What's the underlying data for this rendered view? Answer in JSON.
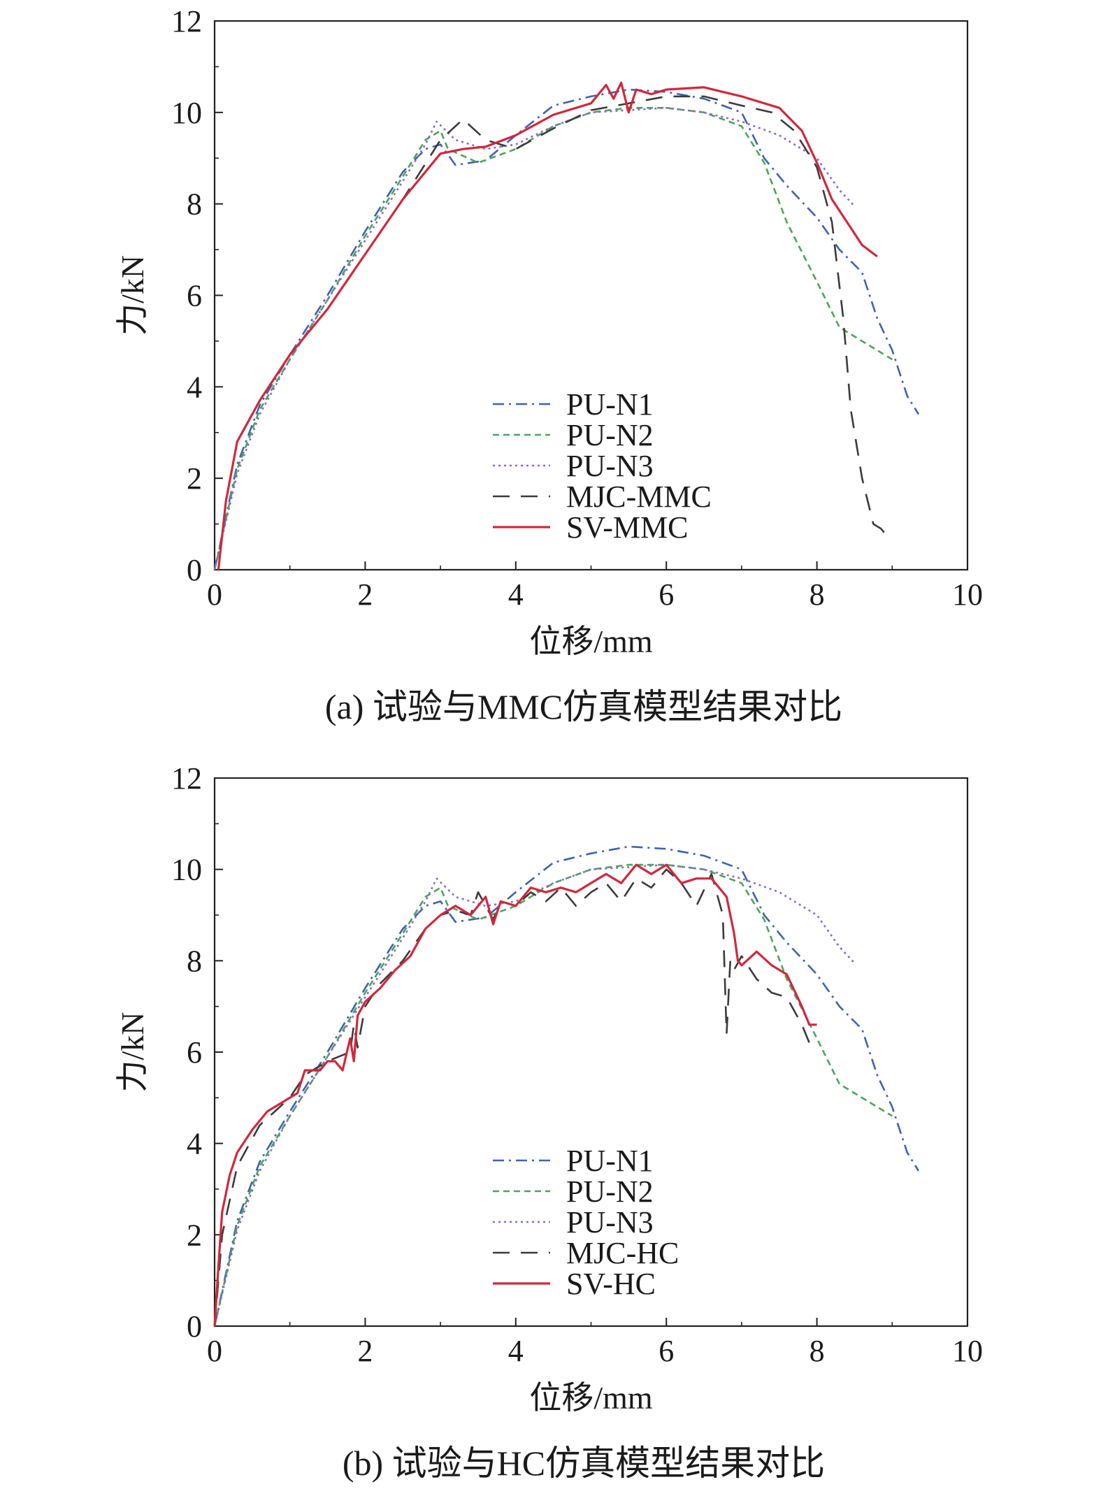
{
  "chart_data": [
    {
      "type": "line",
      "caption": "(a) 试验与MMC仿真模型结果对比",
      "xlabel": "位移/mm",
      "ylabel": "力/kN",
      "xlim": [
        0,
        10
      ],
      "ylim": [
        0,
        12
      ],
      "xticks": [
        "0",
        "2",
        "4",
        "6",
        "8",
        "10"
      ],
      "yticks": [
        "0",
        "2",
        "4",
        "6",
        "8",
        "10",
        "12"
      ],
      "grid": false,
      "legend_position": "lower-center",
      "series": [
        {
          "name": "PU-N1",
          "color": "#3d63b0",
          "dash": "dashdot",
          "x": [
            0,
            0.3,
            0.6,
            1.0,
            1.5,
            2.0,
            2.5,
            2.8,
            3.0,
            3.2,
            3.6,
            4.0,
            4.5,
            5.0,
            5.5,
            6.0,
            6.5,
            7.0,
            7.3,
            7.6,
            8.0,
            8.3,
            8.6,
            8.8,
            9.0,
            9.2,
            9.35
          ],
          "y": [
            0,
            2.3,
            3.6,
            4.7,
            6.0,
            7.4,
            8.7,
            9.2,
            9.3,
            8.85,
            8.95,
            9.5,
            10.15,
            10.35,
            10.5,
            10.45,
            10.3,
            10.0,
            9.0,
            8.4,
            7.7,
            7.0,
            6.5,
            5.5,
            4.8,
            3.8,
            3.4
          ]
        },
        {
          "name": "PU-N2",
          "color": "#4aa55a",
          "dash": "dashed",
          "x": [
            0,
            0.3,
            0.6,
            1.0,
            1.5,
            2.0,
            2.5,
            2.8,
            3.0,
            3.1,
            3.5,
            4.0,
            4.5,
            5.0,
            5.5,
            6.0,
            6.5,
            7.0,
            7.3,
            7.6,
            8.0,
            8.3,
            8.6,
            8.8,
            9.0
          ],
          "y": [
            0,
            2.2,
            3.5,
            4.6,
            5.9,
            7.3,
            8.6,
            9.4,
            9.6,
            9.2,
            8.9,
            9.2,
            9.7,
            10.0,
            10.1,
            10.1,
            10.0,
            9.7,
            8.9,
            7.6,
            6.3,
            5.3,
            5.0,
            4.8,
            4.6
          ]
        },
        {
          "name": "PU-N3",
          "color": "#8a6cbf",
          "dash": "dotted",
          "x": [
            0,
            0.3,
            0.6,
            1.0,
            1.5,
            2.0,
            2.5,
            2.8,
            2.95,
            3.2,
            3.6,
            4.0,
            4.5,
            5.0,
            5.5,
            6.0,
            6.5,
            7.0,
            7.5,
            8.0,
            8.3,
            8.5
          ],
          "y": [
            0,
            2.1,
            3.4,
            4.6,
            5.9,
            7.2,
            8.5,
            9.3,
            9.8,
            9.4,
            9.2,
            9.3,
            9.7,
            10.0,
            10.05,
            10.1,
            10.0,
            9.8,
            9.5,
            9.0,
            8.3,
            7.95
          ]
        },
        {
          "name": "MJC-MMC",
          "color": "#3b3b3b",
          "dash": "longdash",
          "x": [
            0.05,
            0.15,
            0.3,
            0.6,
            1.0,
            1.5,
            2.0,
            2.5,
            3.0,
            3.3,
            3.6,
            4.0,
            4.5,
            5.0,
            5.5,
            6.0,
            6.5,
            7.0,
            7.4,
            7.7,
            8.0,
            8.2,
            8.35,
            8.45,
            8.6,
            8.75,
            8.85,
            8.9
          ],
          "y": [
            0,
            1.5,
            2.8,
            3.7,
            4.7,
            5.7,
            6.9,
            8.1,
            9.4,
            9.85,
            9.4,
            9.2,
            9.65,
            10.05,
            10.2,
            10.35,
            10.35,
            10.15,
            10.0,
            9.6,
            8.8,
            7.6,
            5.5,
            3.5,
            2.0,
            1.0,
            0.9,
            0.8
          ]
        },
        {
          "name": "SV-MMC",
          "color": "#d0283d",
          "dash": "solid",
          "x": [
            0.05,
            0.15,
            0.3,
            0.6,
            1.0,
            1.5,
            2.0,
            2.5,
            3.0,
            3.3,
            3.6,
            4.0,
            4.5,
            5.0,
            5.2,
            5.3,
            5.4,
            5.5,
            5.6,
            5.8,
            6.0,
            6.5,
            7.0,
            7.5,
            7.8,
            8.0,
            8.2,
            8.4,
            8.6,
            8.8
          ],
          "y": [
            0,
            1.5,
            2.8,
            3.7,
            4.7,
            5.7,
            6.9,
            8.1,
            9.1,
            9.2,
            9.25,
            9.5,
            9.95,
            10.2,
            10.6,
            10.3,
            10.65,
            10.0,
            10.5,
            10.4,
            10.5,
            10.55,
            10.35,
            10.1,
            9.6,
            8.9,
            8.1,
            7.6,
            7.1,
            6.85
          ]
        }
      ]
    },
    {
      "type": "line",
      "caption": "(b) 试验与HC仿真模型结果对比",
      "xlabel": "位移/mm",
      "ylabel": "力/kN",
      "xlim": [
        0,
        10
      ],
      "ylim": [
        0,
        12
      ],
      "xticks": [
        "0",
        "2",
        "4",
        "6",
        "8",
        "10"
      ],
      "yticks": [
        "0",
        "2",
        "4",
        "6",
        "8",
        "10",
        "12"
      ],
      "grid": false,
      "legend_position": "lower-center",
      "series": [
        {
          "name": "PU-N1",
          "color": "#3d63b0",
          "dash": "dashdot",
          "x": [
            0,
            0.3,
            0.6,
            1.0,
            1.5,
            2.0,
            2.5,
            2.8,
            3.0,
            3.2,
            3.6,
            4.0,
            4.5,
            5.0,
            5.5,
            6.0,
            6.5,
            7.0,
            7.3,
            7.6,
            8.0,
            8.3,
            8.6,
            8.8,
            9.0,
            9.2,
            9.35
          ],
          "y": [
            0,
            2.3,
            3.6,
            4.7,
            6.0,
            7.4,
            8.7,
            9.2,
            9.3,
            8.85,
            8.95,
            9.5,
            10.15,
            10.35,
            10.5,
            10.45,
            10.3,
            10.0,
            9.0,
            8.4,
            7.7,
            7.0,
            6.5,
            5.5,
            4.8,
            3.8,
            3.4
          ]
        },
        {
          "name": "PU-N2",
          "color": "#4aa55a",
          "dash": "dashed",
          "x": [
            0,
            0.3,
            0.6,
            1.0,
            1.5,
            2.0,
            2.5,
            2.8,
            3.0,
            3.1,
            3.5,
            4.0,
            4.5,
            5.0,
            5.5,
            6.0,
            6.5,
            7.0,
            7.3,
            7.6,
            8.0,
            8.3,
            8.6,
            8.8,
            9.0
          ],
          "y": [
            0,
            2.2,
            3.5,
            4.6,
            5.9,
            7.3,
            8.6,
            9.4,
            9.6,
            9.2,
            8.9,
            9.2,
            9.7,
            10.0,
            10.1,
            10.1,
            10.0,
            9.7,
            8.9,
            7.6,
            6.3,
            5.3,
            5.0,
            4.8,
            4.6
          ]
        },
        {
          "name": "PU-N3",
          "color": "#8a6cbf",
          "dash": "dotted",
          "x": [
            0,
            0.3,
            0.6,
            1.0,
            1.5,
            2.0,
            2.5,
            2.8,
            2.95,
            3.2,
            3.6,
            4.0,
            4.5,
            5.0,
            5.5,
            6.0,
            6.5,
            7.0,
            7.5,
            8.0,
            8.3,
            8.5
          ],
          "y": [
            0,
            2.1,
            3.4,
            4.6,
            5.9,
            7.2,
            8.5,
            9.3,
            9.8,
            9.4,
            9.2,
            9.3,
            9.7,
            10.0,
            10.05,
            10.1,
            10.0,
            9.8,
            9.5,
            9.0,
            8.3,
            7.95
          ]
        },
        {
          "name": "MJC-HC",
          "color": "#3b3b3b",
          "dash": "longdash",
          "x": [
            0,
            0.1,
            0.3,
            0.6,
            0.8,
            1.0,
            1.2,
            1.5,
            1.8,
            1.85,
            1.9,
            2.0,
            2.2,
            2.5,
            2.8,
            3.0,
            3.2,
            3.4,
            3.5,
            3.7,
            3.8,
            4.0,
            4.2,
            4.4,
            4.6,
            4.8,
            5.0,
            5.2,
            5.4,
            5.6,
            5.8,
            6.0,
            6.2,
            6.4,
            6.6,
            6.75,
            6.8,
            6.85,
            6.9,
            7.0,
            7.2,
            7.4,
            7.6,
            7.8,
            7.95
          ],
          "y": [
            0,
            2.0,
            3.5,
            4.4,
            4.7,
            5.0,
            5.5,
            5.8,
            6.0,
            6.6,
            6.1,
            7.0,
            7.5,
            8.0,
            8.7,
            9.0,
            9.1,
            9.0,
            9.5,
            8.9,
            9.3,
            9.2,
            9.5,
            9.3,
            9.6,
            9.2,
            9.5,
            9.7,
            9.3,
            9.8,
            9.6,
            10.0,
            9.7,
            9.2,
            9.9,
            9.0,
            6.4,
            8.0,
            7.8,
            8.1,
            7.6,
            7.3,
            7.2,
            6.6,
            6.0
          ]
        },
        {
          "name": "SV-HC",
          "color": "#d0283d",
          "dash": "solid",
          "x": [
            0,
            0.05,
            0.1,
            0.2,
            0.3,
            0.5,
            0.7,
            0.9,
            1.0,
            1.1,
            1.2,
            1.4,
            1.5,
            1.6,
            1.7,
            1.8,
            1.85,
            1.9,
            2.0,
            2.2,
            2.4,
            2.6,
            2.8,
            3.0,
            3.2,
            3.4,
            3.6,
            3.7,
            3.8,
            4.0,
            4.2,
            4.4,
            4.6,
            4.8,
            5.0,
            5.2,
            5.4,
            5.6,
            5.8,
            6.0,
            6.2,
            6.4,
            6.6,
            6.8,
            6.9,
            6.95,
            7.0,
            7.2,
            7.4,
            7.6,
            7.8,
            7.9,
            8.0
          ],
          "y": [
            0,
            1.3,
            2.5,
            3.3,
            3.8,
            4.3,
            4.7,
            4.9,
            5.0,
            5.1,
            5.6,
            5.6,
            5.8,
            5.8,
            5.6,
            6.3,
            5.8,
            6.8,
            7.1,
            7.4,
            7.8,
            8.1,
            8.7,
            9.0,
            9.2,
            9.0,
            9.4,
            8.8,
            9.3,
            9.2,
            9.6,
            9.5,
            9.6,
            9.5,
            9.7,
            9.9,
            9.7,
            10.1,
            9.9,
            10.1,
            9.7,
            9.8,
            9.8,
            9.4,
            8.6,
            8.0,
            7.9,
            8.2,
            7.9,
            7.7,
            7.0,
            6.6,
            6.6
          ]
        }
      ]
    }
  ]
}
